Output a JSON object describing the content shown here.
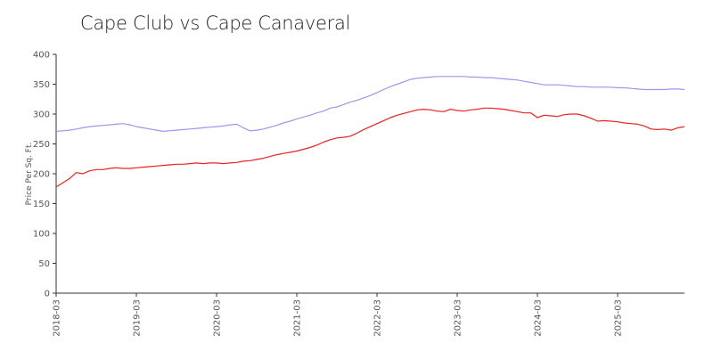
{
  "chart_data": {
    "type": "line",
    "title": "Cape Club vs Cape Canaveral",
    "xlabel": "",
    "ylabel": "Price Per Sq. Ft.",
    "ylim": [
      0,
      400
    ],
    "yticks": [
      0,
      50,
      100,
      150,
      200,
      250,
      300,
      350,
      400
    ],
    "xticks": [
      "2018-03",
      "2019-03",
      "2020-03",
      "2021-03",
      "2022-03",
      "2023-03",
      "2024-03",
      "2025-03"
    ],
    "x_start": "2018-03",
    "grid": false,
    "legend": "none",
    "series": [
      {
        "color": "#9999ee",
        "values": [
          271,
          272,
          273,
          275,
          277,
          279,
          280,
          281,
          282,
          283,
          284,
          282,
          279,
          277,
          275,
          273,
          271,
          272,
          273,
          274,
          275,
          276,
          277,
          278,
          279,
          280,
          282,
          283,
          277,
          272,
          273,
          275,
          278,
          281,
          285,
          288,
          292,
          295,
          298,
          302,
          305,
          310,
          312,
          316,
          320,
          323,
          327,
          331,
          336,
          341,
          346,
          350,
          354,
          358,
          360,
          361,
          362,
          363,
          363,
          363,
          363,
          363,
          362,
          362,
          361,
          361,
          360,
          359,
          358,
          357,
          355,
          353,
          351,
          349,
          349,
          349,
          348,
          347,
          346,
          346,
          345,
          345,
          345,
          345,
          344,
          344,
          343,
          342,
          341,
          341,
          341,
          341,
          342,
          342,
          341
        ]
      },
      {
        "color": "#ee2222",
        "values": [
          178,
          185,
          192,
          202,
          200,
          205,
          207,
          207,
          209,
          210,
          209,
          209,
          210,
          211,
          212,
          213,
          214,
          215,
          216,
          216,
          217,
          218,
          217,
          218,
          218,
          217,
          218,
          219,
          221,
          222,
          224,
          226,
          229,
          232,
          234,
          236,
          238,
          241,
          244,
          248,
          253,
          257,
          260,
          261,
          263,
          268,
          274,
          279,
          284,
          289,
          294,
          298,
          301,
          304,
          307,
          308,
          307,
          305,
          304,
          308,
          306,
          305,
          307,
          308,
          310,
          310,
          309,
          308,
          306,
          304,
          302,
          302,
          294,
          298,
          297,
          296,
          299,
          300,
          300,
          297,
          293,
          288,
          289,
          288,
          287,
          285,
          284,
          283,
          280,
          275,
          274,
          275,
          273,
          277,
          279
        ]
      }
    ]
  }
}
